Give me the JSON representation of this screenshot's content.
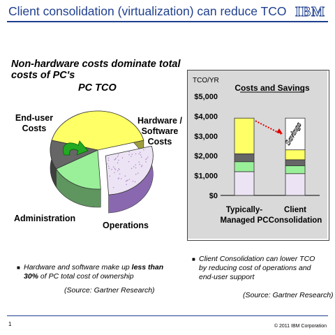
{
  "slide": {
    "title": "Client consolidation (virtualization) can reduce TCO",
    "logo": "IBM",
    "subtitle": "Non-hardware costs dominate total costs of PC's",
    "page_number": "1",
    "copyright": "© 2011 IBM Corporation"
  },
  "pie": {
    "title": "PC TCO",
    "labels": {
      "enduser": "End-user Costs",
      "hardware": "Hardware / Software Costs",
      "administration": "Administration",
      "operations": "Operations"
    }
  },
  "bullets": {
    "left_pre": "Hardware and software make up ",
    "left_bold": "less than 30%",
    "left_post": " of PC total cost of ownership",
    "left_source": "(Source: Gartner Research)",
    "right_text": "Client Consolidation can lower TCO by reducing cost of operations and end-user support",
    "right_source": "(Source: Gartner Research)"
  },
  "chart_data": [
    {
      "type": "pie",
      "title": "PC TCO",
      "slices": [
        {
          "label": "End-user Costs",
          "value": 42,
          "color": "#ffff66"
        },
        {
          "label": "Hardware / Software Costs",
          "value": 28,
          "color": "#ece4f4"
        },
        {
          "label": "Operations",
          "value": 18,
          "color": "#99f099"
        },
        {
          "label": "Administration",
          "value": 12,
          "color": "#666666"
        }
      ]
    },
    {
      "type": "bar",
      "stacked": true,
      "title": "Costs and Savings",
      "ylabel": "TCO/YR",
      "ylim": [
        0,
        5000
      ],
      "yticks": [
        0,
        1000,
        2000,
        3000,
        4000,
        5000
      ],
      "ytick_labels": [
        "$0",
        "$1,000",
        "$2,000",
        "$3,000",
        "$4,000",
        "$5,000"
      ],
      "categories": [
        "Typically-Managed PC",
        "Client Consolidation"
      ],
      "series": [
        {
          "name": "Hardware / Software",
          "values": [
            1200,
            1100
          ],
          "color": "#ece4f4"
        },
        {
          "name": "Operations",
          "values": [
            500,
            400
          ],
          "color": "#99f099"
        },
        {
          "name": "Administration",
          "values": [
            400,
            300
          ],
          "color": "#666666"
        },
        {
          "name": "End-user",
          "values": [
            1800,
            500
          ],
          "color": "#ffff66"
        }
      ],
      "savings_label": "Savings",
      "savings_top": 3900
    }
  ]
}
